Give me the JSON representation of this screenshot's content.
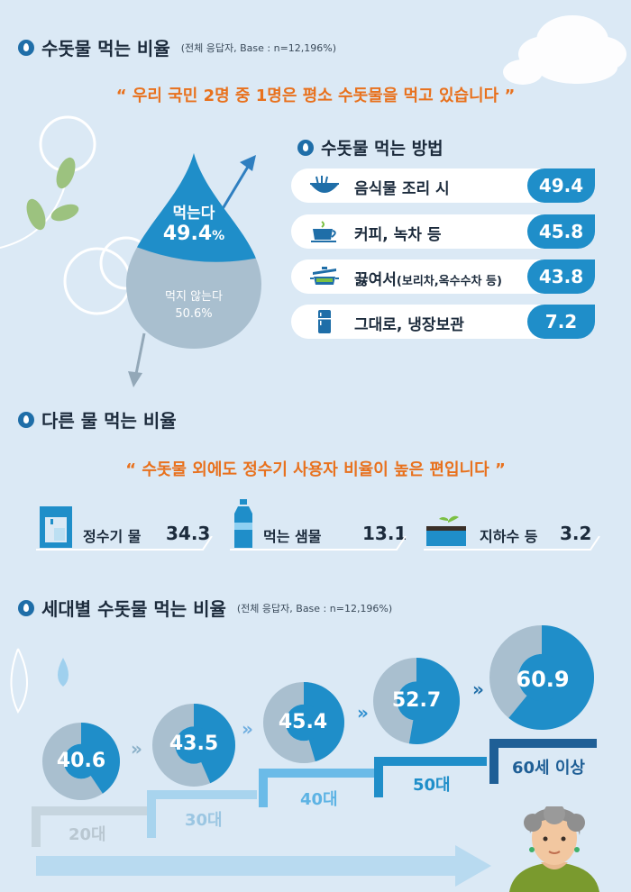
{
  "section1": {
    "title": "수돗물 먹는 비율",
    "subtitle": "(전체 응답자, Base : n=12,196%)"
  },
  "quote1": "“ 우리 국민 2명 중 1명은 평소 수돗물을 먹고 있습니다 ”",
  "drop": {
    "yes_label": "먹는다",
    "yes_value": "49.4",
    "yes_unit": "%",
    "no_label": "먹지 않는다",
    "no_value": "50.6%"
  },
  "methods": {
    "title": "수돗물 먹는 방법",
    "items": [
      {
        "label": "음식물 조리 시",
        "label_small": "",
        "value": "49.4",
        "icon": "noodle-bowl-icon"
      },
      {
        "label": "커피, 녹차 등",
        "label_small": "",
        "value": "45.8",
        "icon": "tea-cup-icon"
      },
      {
        "label": "끓여서",
        "label_small": "(보리차,옥수수차 등)",
        "value": "43.8",
        "icon": "pot-icon"
      },
      {
        "label": "그대로, 냉장보관",
        "label_small": "",
        "value": "7.2",
        "icon": "fridge-icon"
      }
    ]
  },
  "section2": {
    "title": "다른 물 먹는 비율"
  },
  "quote2": "“ 수돗물 외에도 정수기 사용자 비율이 높은 편입니다 ”",
  "others": [
    {
      "label": "정수기 물",
      "value": "34.3",
      "icon": "water-purifier-icon"
    },
    {
      "label": "먹는 샘물",
      "value": "13.1",
      "icon": "water-bottle-icon"
    },
    {
      "label": "지하수 등",
      "value": "3.2",
      "icon": "groundwater-icon"
    }
  ],
  "section3": {
    "title": "세대별 수돗물 먹는 비율",
    "subtitle": "(전체 응답자, Base : n=12,196%)"
  },
  "generations": [
    {
      "label": "20대",
      "value": "40.6",
      "fraction": 0.406
    },
    {
      "label": "30대",
      "value": "43.5",
      "fraction": 0.435
    },
    {
      "label": "40대",
      "value": "45.4",
      "fraction": 0.454
    },
    {
      "label": "50대",
      "value": "52.7",
      "fraction": 0.527
    },
    {
      "label": "60세 이상",
      "value": "60.9",
      "fraction": 0.609
    }
  ],
  "colors": {
    "accent": "#1f8ec9",
    "orange": "#e8711d",
    "donut_bg": "#a9bfcf",
    "background": "#dbe9f5"
  }
}
